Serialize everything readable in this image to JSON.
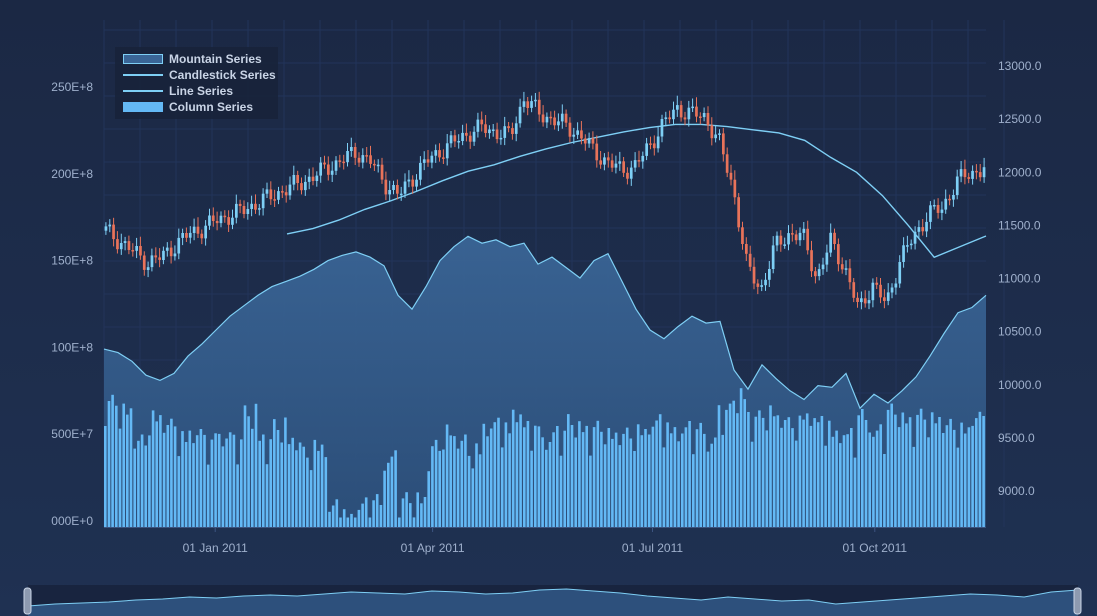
{
  "chart_data": {
    "type": "line",
    "title": "",
    "x_range": [
      "2010-11-16",
      "2011-11-16"
    ],
    "x_ticks": [
      "01 Jan 2011",
      "01 Apr 2011",
      "01 Jul 2011",
      "01 Oct 2011"
    ],
    "left_axis": {
      "range": [
        0,
        250000000
      ],
      "ticks": [
        "000E+0",
        "500E+7",
        "100E+8",
        "150E+8",
        "200E+8",
        "250E+8"
      ]
    },
    "right_axis": {
      "range": [
        8700,
        13100
      ],
      "ticks": [
        "9000.0",
        "9500.0",
        "10000.0",
        "10500.0",
        "11000.0",
        "11500.0",
        "12000.0",
        "12500.0",
        "13000.0"
      ]
    },
    "legend_placement": "top-left",
    "series": [
      {
        "name": "Mountain Series",
        "kind": "mountain",
        "axis": "left",
        "color": "#5a8dc4",
        "values": [
          99,
          97,
          92,
          84,
          81,
          85,
          95,
          102,
          110,
          118,
          124,
          130,
          135,
          138,
          141,
          145,
          150,
          153,
          155,
          152,
          147,
          130,
          122,
          135,
          150,
          158,
          164,
          160,
          162,
          158,
          160,
          148,
          152,
          146,
          140,
          150,
          154,
          138,
          122,
          110,
          105,
          112,
          118,
          114,
          115,
          87,
          76,
          90,
          82,
          75,
          70,
          78,
          77,
          85,
          65,
          73,
          68,
          75,
          83,
          95,
          108,
          120,
          123,
          130
        ]
      },
      {
        "name": "Candlestick Series",
        "kind": "candlestick",
        "axis": "right",
        "color": "#7ecff5",
        "down_color": "#e8735a",
        "values": [
          11450,
          11350,
          11250,
          11150,
          11200,
          11320,
          11420,
          11480,
          11550,
          11600,
          11650,
          11720,
          11780,
          11850,
          11900,
          11970,
          12050,
          12120,
          12190,
          12100,
          11900,
          11780,
          11950,
          12100,
          12200,
          12290,
          12370,
          12420,
          12380,
          12340,
          12700,
          12560,
          12500,
          12440,
          12350,
          12200,
          12090,
          12020,
          12060,
          12250,
          12460,
          12600,
          12550,
          12520,
          12280,
          11850,
          11100,
          10900,
          11300,
          11420,
          11400,
          11000,
          11350,
          11100,
          10700,
          10950,
          10750,
          11200,
          11390,
          11620,
          11650,
          11920,
          11980,
          12050
        ]
      },
      {
        "name": "Line Series",
        "kind": "line",
        "axis": "right",
        "color": "#7ecff5",
        "values": [
          11420,
          11470,
          11550,
          11650,
          11730,
          11820,
          11920,
          12010,
          12070,
          12150,
          12220,
          12280,
          12330,
          12380,
          12420,
          12450,
          12450,
          12430,
          12400,
          12370,
          12300,
          12140,
          12000,
          11780,
          11500,
          11200,
          11300,
          11400
        ]
      },
      {
        "name": "Column Series",
        "kind": "column",
        "axis": "left",
        "color": "#64b9f5",
        "values": [
          70,
          64,
          48,
          61,
          58,
          50,
          53,
          46,
          52,
          47,
          63,
          48,
          56,
          47,
          41,
          44,
          8,
          5,
          10,
          11,
          38,
          13,
          12,
          44,
          52,
          48,
          42,
          56,
          55,
          65,
          54,
          50,
          52,
          58,
          53,
          55,
          50,
          52,
          53,
          57,
          55,
          54,
          52,
          49,
          64,
          72,
          61,
          63,
          60,
          58,
          62,
          56,
          53,
          50,
          60,
          53,
          64,
          58,
          62,
          59,
          57,
          54,
          62,
          56
        ]
      }
    ]
  },
  "navigator": {
    "label": "",
    "values": [
      10,
      12,
      13,
      14,
      16,
      17,
      19,
      18,
      20,
      21,
      20,
      22,
      24,
      23,
      22,
      25,
      24,
      22,
      23,
      26,
      27,
      25,
      23,
      20,
      18,
      16,
      19,
      17,
      15,
      16,
      12,
      14,
      16,
      18,
      20,
      22,
      21,
      19,
      24,
      26
    ]
  }
}
